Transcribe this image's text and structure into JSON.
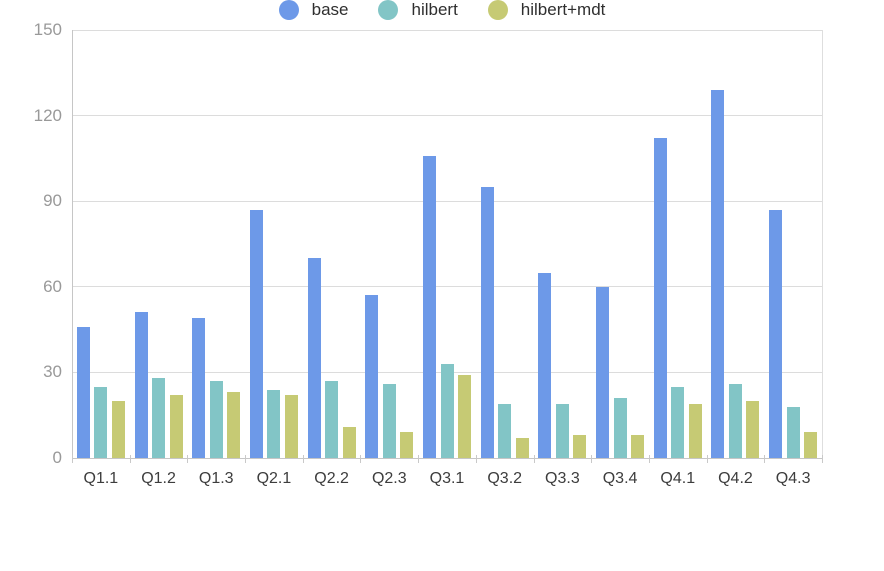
{
  "chart_data": {
    "type": "bar",
    "title": "",
    "xlabel": "",
    "ylabel": "",
    "categories": [
      "Q1.1",
      "Q1.2",
      "Q1.3",
      "Q2.1",
      "Q2.2",
      "Q2.3",
      "Q3.1",
      "Q3.2",
      "Q3.3",
      "Q3.4",
      "Q4.1",
      "Q4.2",
      "Q4.3"
    ],
    "series": [
      {
        "name": "base",
        "color": "#6d99e8",
        "values": [
          46,
          51,
          49,
          87,
          70,
          57,
          106,
          95,
          65,
          60,
          112,
          129,
          87
        ]
      },
      {
        "name": "hilbert",
        "color": "#82c5c6",
        "values": [
          25,
          28,
          27,
          24,
          27,
          26,
          33,
          19,
          19,
          21,
          25,
          26,
          18
        ]
      },
      {
        "name": "hilbert+mdt",
        "color": "#c6ca74",
        "values": [
          20,
          22,
          23,
          22,
          11,
          9,
          29,
          7,
          8,
          8,
          19,
          20,
          9
        ]
      }
    ],
    "y_ticks": [
      0,
      30,
      60,
      90,
      120,
      150
    ],
    "ylim": [
      0,
      150
    ],
    "grid": true,
    "legend_position": "bottom"
  },
  "colors": {
    "background": "#ffffff",
    "gridline": "#dcdcdc",
    "axis_line": "#c6c6c6",
    "y_label_text": "#999999",
    "x_label_text": "#3d3d3d",
    "legend_text": "#2f2f2f"
  }
}
